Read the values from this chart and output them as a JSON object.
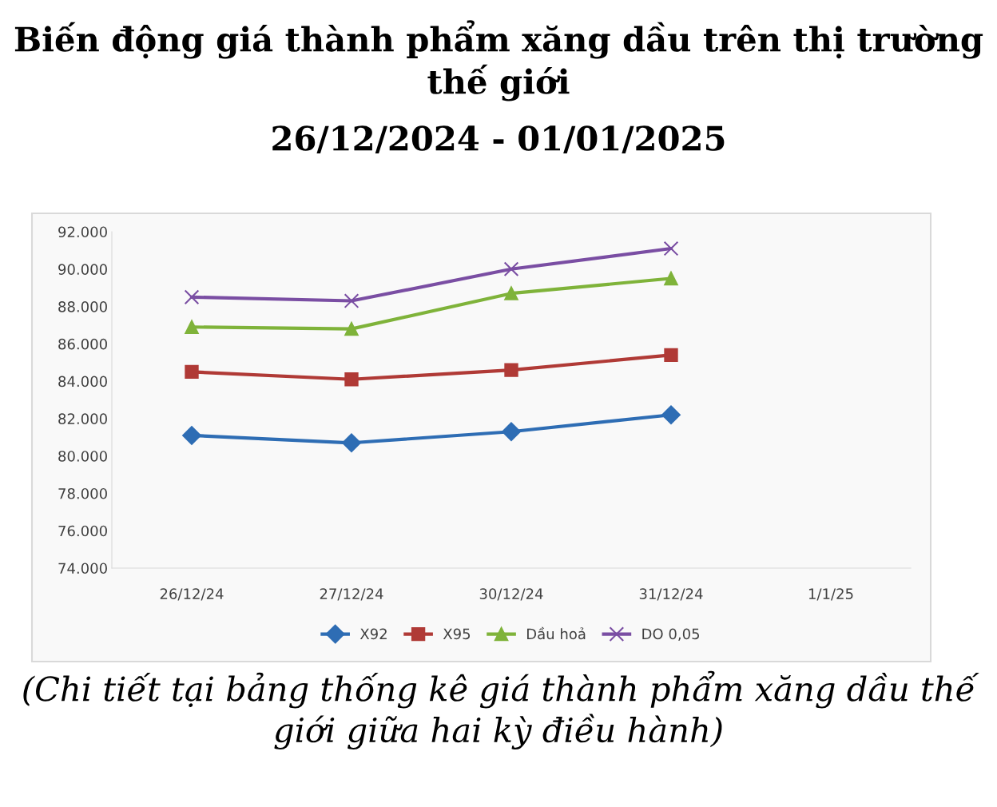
{
  "chart_data": {
    "type": "line",
    "title": "Biến động giá thành phẩm xăng dầu trên thị trường thế giới",
    "subtitle": "26/12/2024 - 01/01/2025",
    "categories": [
      "26/12/24",
      "27/12/24",
      "30/12/24",
      "31/12/24",
      "1/1/25"
    ],
    "series": [
      {
        "name": "X92",
        "color": "#2e6db4",
        "marker": "diamond",
        "values": [
          81100,
          80700,
          81300,
          82200,
          null
        ]
      },
      {
        "name": "X95",
        "color": "#b03a36",
        "marker": "square",
        "values": [
          84500,
          84100,
          84600,
          85400,
          null
        ]
      },
      {
        "name": "Dầu hoả",
        "color": "#7fb33a",
        "marker": "triangle",
        "values": [
          86900,
          86800,
          88700,
          89500,
          null
        ]
      },
      {
        "name": "DO 0,05",
        "color": "#7a4ea3",
        "marker": "cross",
        "values": [
          88500,
          88300,
          90000,
          91100,
          null
        ]
      }
    ],
    "ylim": [
      74000,
      92000
    ],
    "yticks": [
      {
        "value": 74000,
        "label": "74.000"
      },
      {
        "value": 76000,
        "label": "76.000"
      },
      {
        "value": 78000,
        "label": "78.000"
      },
      {
        "value": 80000,
        "label": "80.000"
      },
      {
        "value": 82000,
        "label": "82.000"
      },
      {
        "value": 84000,
        "label": "84.000"
      },
      {
        "value": 86000,
        "label": "86.000"
      },
      {
        "value": 88000,
        "label": "88.000"
      },
      {
        "value": 90000,
        "label": "90.000"
      },
      {
        "value": 92000,
        "label": "92.000"
      }
    ],
    "grid": false,
    "legend": "bottom",
    "line_style": "solid",
    "annotations": [
      "(Chi tiết tại bảng thống kê giá thành phẩm xăng dầu thế giới giữa hai kỳ điều hành)"
    ]
  }
}
